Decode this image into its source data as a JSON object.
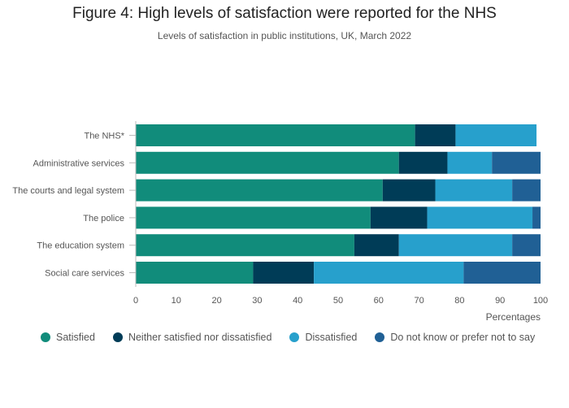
{
  "title": "Figure 4: High levels of satisfaction were reported for the NHS",
  "subtitle": "Levels of satisfaction in public institutions, UK, March 2022",
  "chart_data": {
    "type": "bar",
    "orientation": "horizontal",
    "stacked": true,
    "categories": [
      "The NHS*",
      "Administrative services",
      "The courts and legal system",
      "The police",
      "The education system",
      "Social care services"
    ],
    "series": [
      {
        "name": "Satisfied",
        "color": "#118c7b",
        "values": [
          69,
          65,
          61,
          58,
          54,
          29
        ]
      },
      {
        "name": "Neither satisfied nor dissatisfied",
        "color": "#003c57",
        "values": [
          10,
          12,
          13,
          14,
          11,
          15
        ]
      },
      {
        "name": "Dissatisfied",
        "color": "#27a0cc",
        "values": [
          20,
          11,
          19,
          26,
          28,
          37
        ]
      },
      {
        "name": "Do not know or prefer not to say",
        "color": "#206095",
        "values": [
          0,
          12,
          7,
          2,
          7,
          19
        ]
      }
    ],
    "xlabel": "Percentages",
    "ylabel": "",
    "xlim": [
      0,
      100
    ],
    "xticks": [
      0,
      10,
      20,
      30,
      40,
      50,
      60,
      70,
      80,
      90,
      100
    ],
    "grid": false,
    "legend_position": "bottom"
  }
}
